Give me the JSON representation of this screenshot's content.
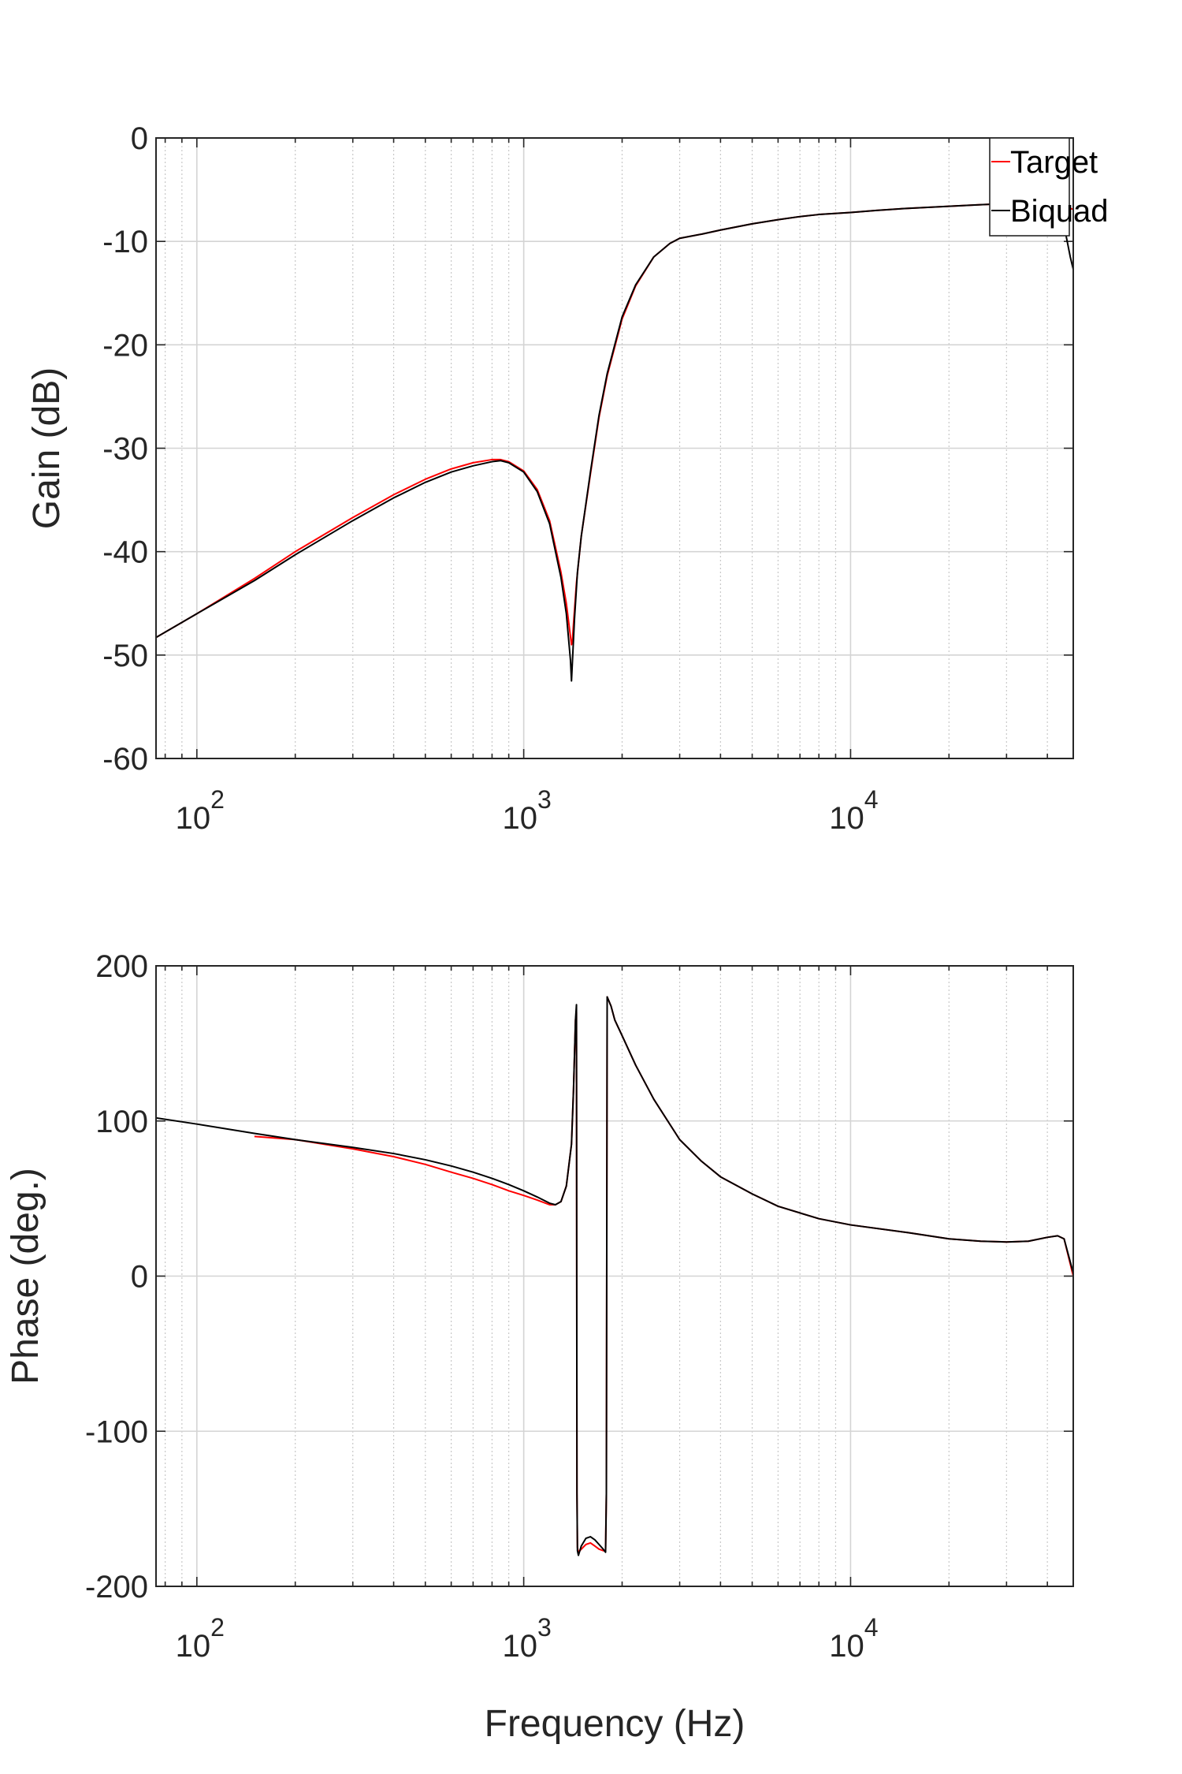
{
  "chart_data": [
    {
      "type": "line",
      "xscale": "log",
      "xlim": [
        75,
        48000
      ],
      "ylim": [
        -60,
        0
      ],
      "ylabel": "Gain (dB)",
      "xlabel": "",
      "grid": true,
      "legend_position": "top-right",
      "yticks": [
        0,
        -10,
        -20,
        -30,
        -40,
        -50,
        -60
      ],
      "yticklabels": [
        "0",
        "-10",
        "-20",
        "-30",
        "-40",
        "-50",
        "-60"
      ],
      "xticks": [
        100,
        1000,
        10000
      ],
      "xticklabels": [
        {
          "base": "10",
          "exp": "2"
        },
        {
          "base": "10",
          "exp": "3"
        },
        {
          "base": "10",
          "exp": "4"
        }
      ],
      "series": [
        {
          "name": "Target",
          "color": "#ff0000",
          "x": [
            75,
            100,
            150,
            200,
            300,
            400,
            500,
            600,
            700,
            800,
            850,
            900,
            1000,
            1100,
            1200,
            1300,
            1350,
            1400,
            1410,
            1420,
            1450,
            1500,
            1600,
            1700,
            1800,
            2000,
            2200,
            2500,
            2800,
            3000,
            3500,
            4000,
            5000,
            6000,
            7000,
            8000,
            10000,
            12000,
            15000,
            20000,
            25000,
            30000,
            35000,
            40000,
            43000,
            45000,
            48000
          ],
          "y": [
            -48.3,
            -46.0,
            -42.6,
            -40.0,
            -36.7,
            -34.5,
            -33.0,
            -32.0,
            -31.4,
            -31.1,
            -31.1,
            -31.3,
            -32.2,
            -34.0,
            -37.0,
            -42.0,
            -45.0,
            -49.0,
            -48.5,
            -47.0,
            -43.0,
            -38.5,
            -32.5,
            -27.0,
            -23.0,
            -17.5,
            -14.3,
            -11.5,
            -10.2,
            -9.7,
            -9.3,
            -8.9,
            -8.3,
            -7.9,
            -7.6,
            -7.4,
            -7.2,
            -7.0,
            -6.8,
            -6.6,
            -6.45,
            -6.35,
            -6.3,
            -6.3,
            -6.4,
            -6.6,
            -6.9
          ]
        },
        {
          "name": "Biquad",
          "color": "#000000",
          "x": [
            75,
            100,
            150,
            200,
            300,
            400,
            500,
            600,
            700,
            800,
            850,
            900,
            1000,
            1100,
            1200,
            1300,
            1350,
            1390,
            1400,
            1410,
            1430,
            1460,
            1500,
            1600,
            1700,
            1800,
            2000,
            2200,
            2500,
            2800,
            3000,
            3500,
            4000,
            5000,
            6000,
            7000,
            8000,
            10000,
            12000,
            15000,
            20000,
            25000,
            30000,
            35000,
            40000,
            43000,
            45000,
            46000,
            47000,
            48000
          ],
          "y": [
            -48.3,
            -46.0,
            -42.8,
            -40.3,
            -37.0,
            -34.8,
            -33.3,
            -32.3,
            -31.7,
            -31.3,
            -31.2,
            -31.4,
            -32.3,
            -34.2,
            -37.3,
            -42.5,
            -46.0,
            -50.5,
            -52.5,
            -50.5,
            -46.5,
            -42.0,
            -38.5,
            -32.3,
            -26.8,
            -22.8,
            -17.3,
            -14.2,
            -11.5,
            -10.2,
            -9.7,
            -9.3,
            -8.9,
            -8.3,
            -7.9,
            -7.6,
            -7.4,
            -7.2,
            -7.0,
            -6.8,
            -6.6,
            -6.45,
            -6.35,
            -6.3,
            -6.4,
            -7.2,
            -8.5,
            -10.0,
            -11.5,
            -12.7
          ]
        }
      ]
    },
    {
      "type": "line",
      "xscale": "log",
      "xlim": [
        75,
        48000
      ],
      "ylim": [
        -200,
        200
      ],
      "ylabel": "Phase (deg.)",
      "xlabel": "Frequency (Hz)",
      "grid": true,
      "yticks": [
        200,
        100,
        0,
        -100,
        -200
      ],
      "yticklabels": [
        "200",
        "100",
        "0",
        "-100",
        "-200"
      ],
      "xticks": [
        100,
        1000,
        10000
      ],
      "xticklabels": [
        {
          "base": "10",
          "exp": "2"
        },
        {
          "base": "10",
          "exp": "3"
        },
        {
          "base": "10",
          "exp": "4"
        }
      ],
      "series": [
        {
          "name": "Target",
          "color": "#ff0000",
          "x": [
            150,
            200,
            300,
            400,
            500,
            600,
            700,
            800,
            900,
            1000,
            1100,
            1200,
            1250,
            1300,
            1350,
            1400,
            1420,
            1440,
            1450,
            1455,
            1460,
            1470,
            1500,
            1550,
            1600,
            1650,
            1700,
            1750,
            1780,
            1790,
            1800,
            1850,
            1900,
            2000,
            2200,
            2500,
            3000,
            3500,
            4000,
            5000,
            6000,
            8000,
            10000,
            15000,
            20000,
            25000,
            30000,
            35000,
            40000,
            43000,
            45000,
            48000
          ],
          "y": [
            90,
            88,
            82,
            77,
            72,
            67,
            63,
            59,
            55,
            52,
            49,
            46,
            46,
            48,
            58,
            85,
            120,
            165,
            170,
            -140,
            -175,
            -178,
            -176,
            -173,
            -172,
            -174,
            -176,
            -177,
            -177,
            -140,
            180,
            174,
            165,
            155,
            136,
            114,
            88,
            74,
            64,
            53,
            45,
            37,
            33,
            28,
            24,
            22.5,
            22,
            22.5,
            25,
            26,
            24,
            0
          ]
        },
        {
          "name": "Biquad",
          "color": "#000000",
          "x": [
            75,
            100,
            150,
            200,
            300,
            400,
            500,
            600,
            700,
            800,
            900,
            1000,
            1100,
            1200,
            1250,
            1300,
            1350,
            1400,
            1420,
            1440,
            1450,
            1455,
            1460,
            1470,
            1500,
            1550,
            1600,
            1650,
            1700,
            1750,
            1780,
            1790,
            1800,
            1850,
            1900,
            2000,
            2200,
            2500,
            3000,
            3500,
            4000,
            5000,
            6000,
            8000,
            10000,
            15000,
            20000,
            25000,
            30000,
            35000,
            40000,
            43000,
            45000,
            48000
          ],
          "y": [
            102,
            98,
            92,
            88,
            83,
            79,
            75,
            71,
            67,
            63,
            59,
            55,
            51,
            47,
            46,
            48,
            58,
            85,
            120,
            165,
            175,
            -140,
            -177,
            -180,
            -174,
            -169,
            -168,
            -170,
            -173,
            -176,
            -178,
            -140,
            180,
            174,
            165,
            155,
            136,
            114,
            88,
            74,
            64,
            53,
            45,
            37,
            33,
            28,
            24,
            22.5,
            22,
            22.5,
            25,
            26,
            24,
            2
          ]
        }
      ]
    }
  ]
}
